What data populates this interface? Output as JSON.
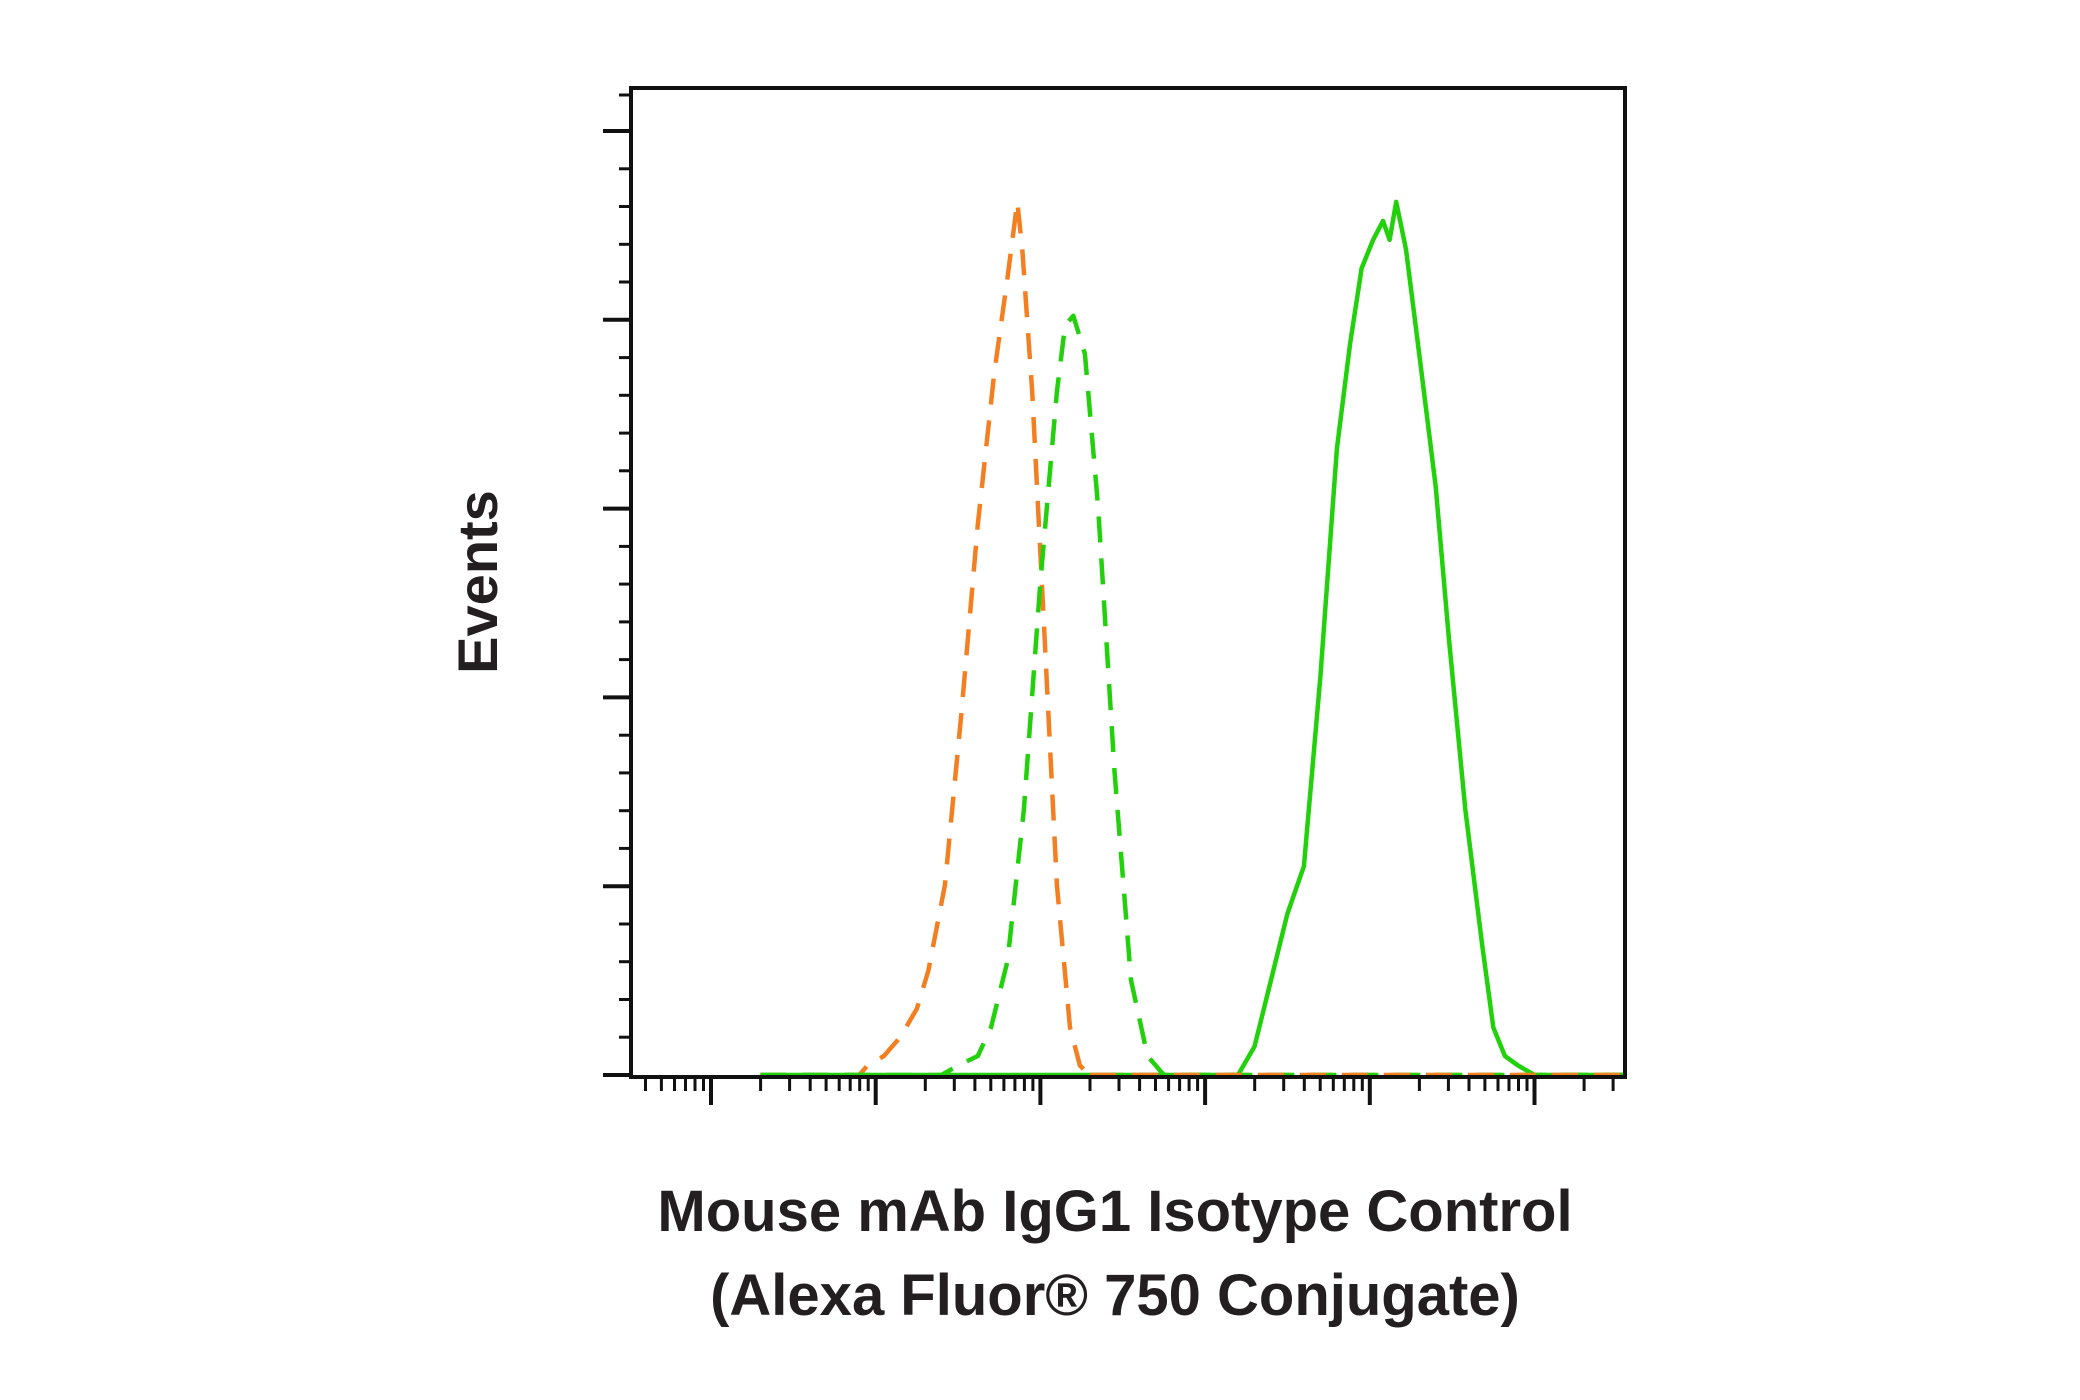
{
  "chart_data": {
    "type": "line",
    "title": "",
    "xlabel": [
      "Mouse mAb IgG1 Isotype Control",
      "(Alexa Fluor® 750 Conjugate)"
    ],
    "ylabel": "Events",
    "x_scale": "log",
    "x_range_decades": [
      0,
      6
    ],
    "y_range": [
      0,
      100
    ],
    "tick_labels_shown": false,
    "grid": false,
    "legend": "none",
    "series": [
      {
        "color": "#f47f20",
        "style": "dashed",
        "points": [
          [
            0.3,
            0
          ],
          [
            0.9,
            0
          ],
          [
            0.95,
            1
          ],
          [
            1.05,
            2
          ],
          [
            1.15,
            4
          ],
          [
            1.25,
            7
          ],
          [
            1.32,
            11
          ],
          [
            1.42,
            20
          ],
          [
            1.52,
            38
          ],
          [
            1.62,
            58
          ],
          [
            1.72,
            74
          ],
          [
            1.8,
            84
          ],
          [
            1.86,
            92
          ],
          [
            1.89,
            87
          ],
          [
            1.95,
            72
          ],
          [
            2.02,
            48
          ],
          [
            2.1,
            20
          ],
          [
            2.18,
            5
          ],
          [
            2.24,
            1
          ],
          [
            2.3,
            0
          ],
          [
            6,
            0
          ]
        ]
      },
      {
        "color": "#22d10c",
        "style": "dashed",
        "points": [
          [
            0.3,
            0
          ],
          [
            1.4,
            0
          ],
          [
            1.5,
            1
          ],
          [
            1.62,
            2
          ],
          [
            1.7,
            5
          ],
          [
            1.8,
            12
          ],
          [
            1.9,
            28
          ],
          [
            2.0,
            52
          ],
          [
            2.1,
            72
          ],
          [
            2.15,
            79
          ],
          [
            2.2,
            80
          ],
          [
            2.27,
            76
          ],
          [
            2.35,
            60
          ],
          [
            2.45,
            32
          ],
          [
            2.55,
            10
          ],
          [
            2.65,
            2
          ],
          [
            2.75,
            0
          ],
          [
            6,
            0
          ]
        ]
      },
      {
        "color": "#22d10c",
        "style": "solid",
        "points": [
          [
            0.3,
            0
          ],
          [
            3.2,
            0
          ],
          [
            3.3,
            3
          ],
          [
            3.4,
            10
          ],
          [
            3.5,
            17
          ],
          [
            3.6,
            22
          ],
          [
            3.7,
            42
          ],
          [
            3.8,
            66
          ],
          [
            3.88,
            77
          ],
          [
            3.95,
            85
          ],
          [
            4.02,
            88
          ],
          [
            4.08,
            90
          ],
          [
            4.12,
            88
          ],
          [
            4.16,
            92
          ],
          [
            4.22,
            87
          ],
          [
            4.3,
            76
          ],
          [
            4.4,
            62
          ],
          [
            4.48,
            46
          ],
          [
            4.58,
            28
          ],
          [
            4.68,
            14
          ],
          [
            4.75,
            5
          ],
          [
            4.82,
            2
          ],
          [
            4.9,
            1
          ],
          [
            5.0,
            0
          ],
          [
            6,
            0
          ]
        ]
      },
      {
        "color": "#f47f20",
        "style": "dashed",
        "points": [
          [
            2.3,
            0
          ],
          [
            6,
            0
          ]
        ]
      }
    ]
  }
}
